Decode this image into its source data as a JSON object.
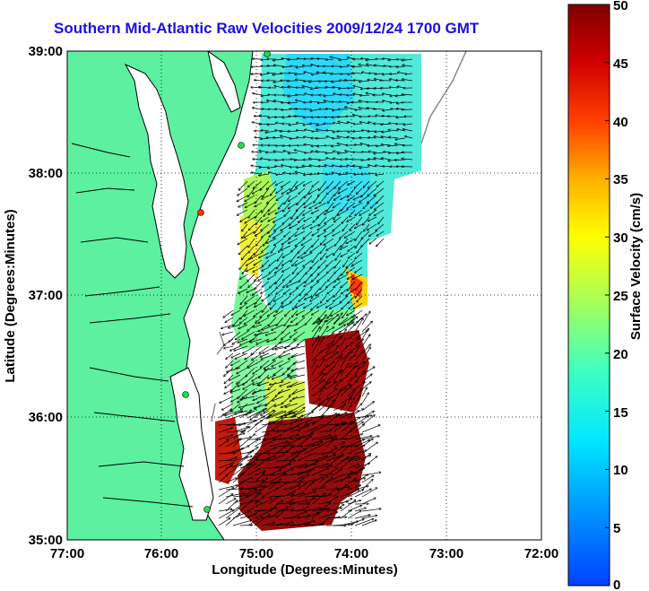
{
  "title": "Southern Mid-Atlantic Raw Velocities 2009/12/24 1700 GMT",
  "axes": {
    "xlabel": "Longitude (Degrees:Minutes)",
    "ylabel": "Latitude (Degrees:Minutes)",
    "x_ticks": [
      "77:00",
      "76:00",
      "75:00",
      "74:00",
      "73:00",
      "72:00"
    ],
    "y_ticks": [
      "39:00",
      "38:00",
      "37:00",
      "36:00",
      "35:00"
    ]
  },
  "colorbar": {
    "label": "Surface Velocity (cm/s)",
    "ticks": [
      "0",
      "5",
      "10",
      "15",
      "20",
      "25",
      "30",
      "35",
      "40",
      "45",
      "50"
    ],
    "min": 0,
    "max": 50,
    "colormap": "jet"
  },
  "colors": {
    "land": "#5cf0a0",
    "title": "#1a10e0",
    "coast": "#000000",
    "station": "#22dd44"
  },
  "map": {
    "lon_range": [
      -77,
      -72
    ],
    "lat_range": [
      35,
      39
    ],
    "grid": true
  }
}
